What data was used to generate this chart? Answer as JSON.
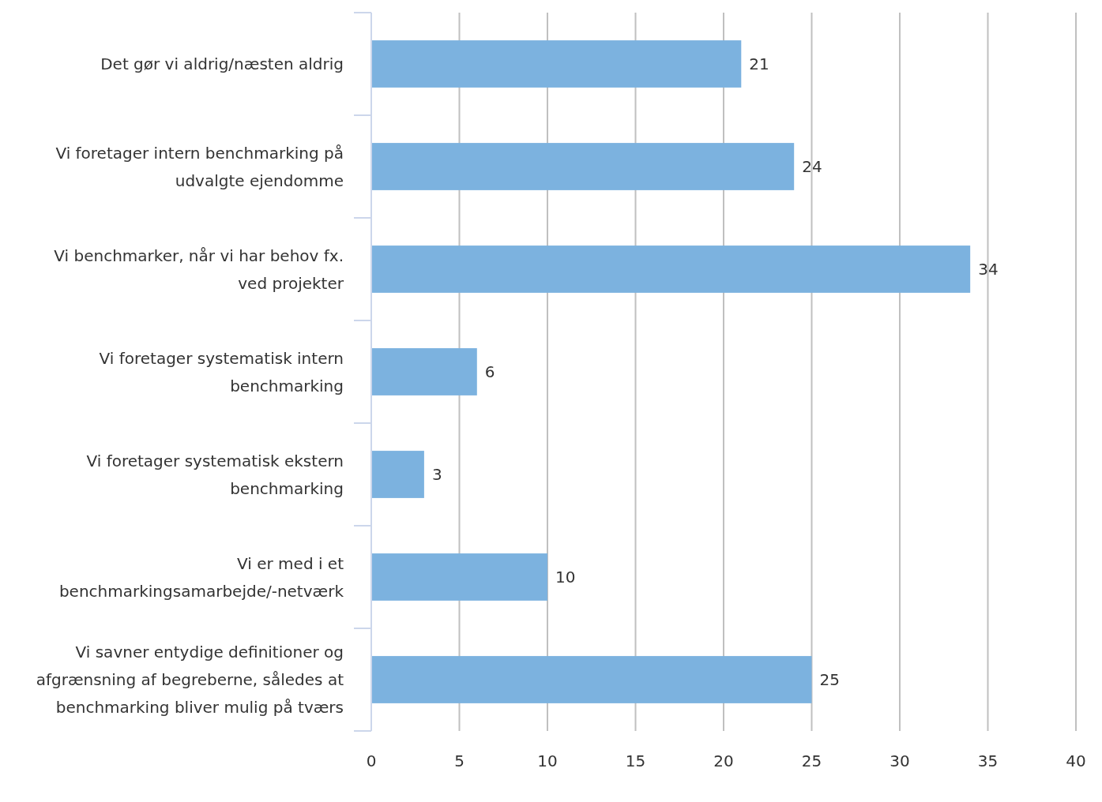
{
  "chart_data": {
    "type": "bar",
    "orientation": "horizontal",
    "categories": [
      "Det gør vi aldrig/næsten aldrig",
      "Vi foretager intern benchmarking på udvalgte ejendomme",
      "Vi benchmarker, når vi har behov fx. ved projekter",
      "Vi foretager systematisk intern benchmarking",
      "Vi foretager systematisk ekstern benchmarking",
      "Vi er med i et benchmarkingsamarbejde/-netværk",
      "Vi savner entydige definitioner og afgrænsning af begreberne, således at benchmarking bliver mulig på tværs"
    ],
    "values": [
      21,
      24,
      34,
      6,
      3,
      10,
      25
    ],
    "color": "#7cb2df",
    "xlim": [
      0,
      40
    ],
    "xticks": [
      0,
      5,
      10,
      15,
      20,
      25,
      30,
      35,
      40
    ],
    "grid": "x",
    "data_labels": true
  }
}
